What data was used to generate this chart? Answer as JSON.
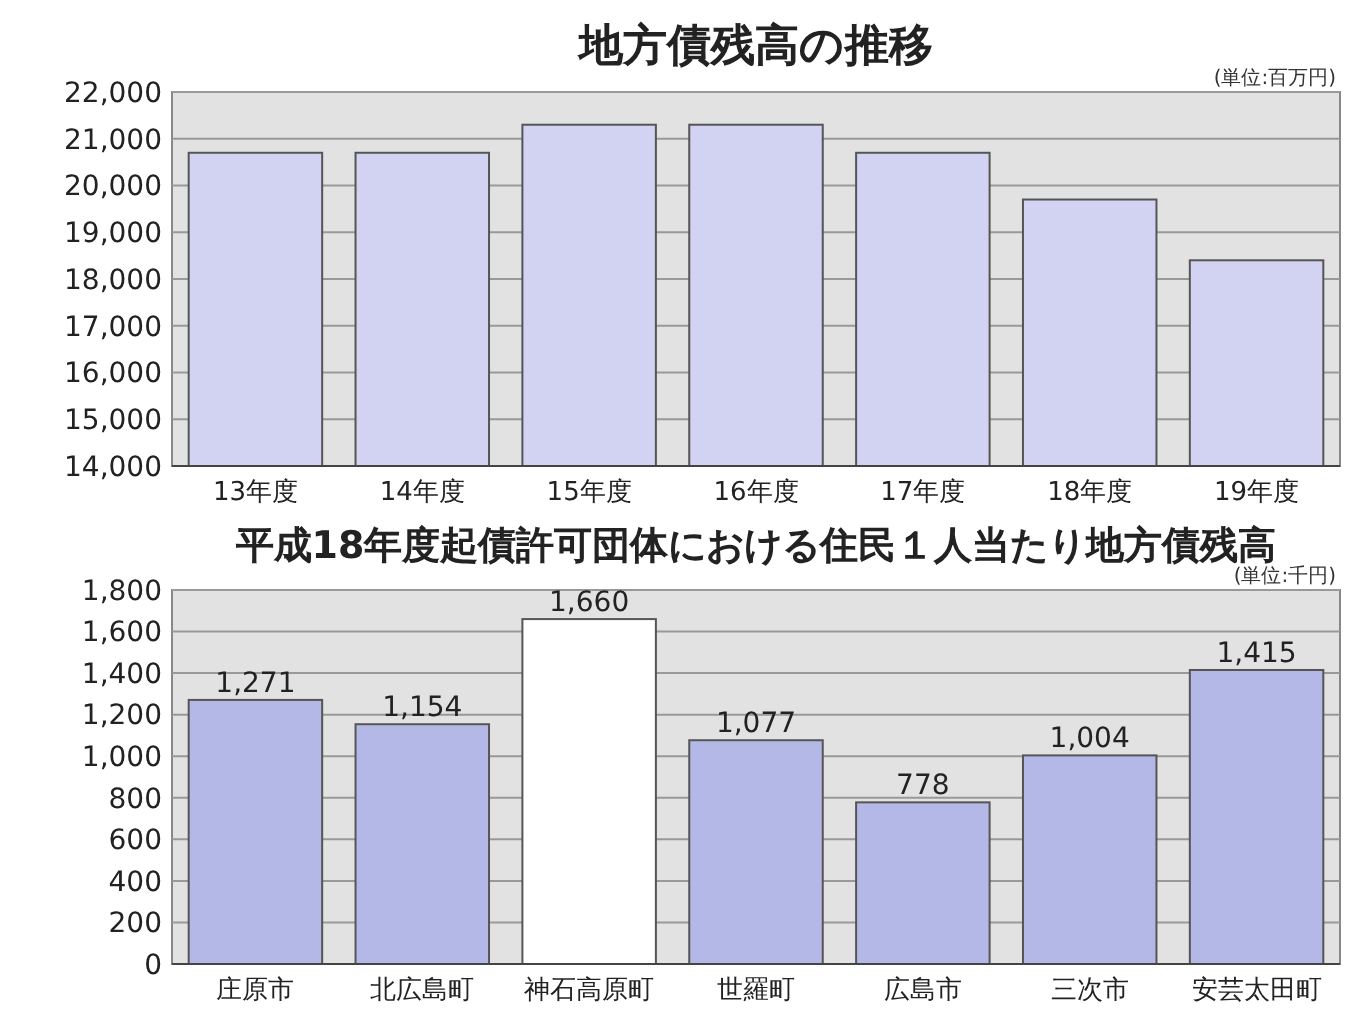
{
  "chart_data": [
    {
      "type": "bar",
      "title": "地方債残高の推移",
      "annotations": [
        "(単位:百万円)"
      ],
      "categories": [
        "13年度",
        "14年度",
        "15年度",
        "16年度",
        "17年度",
        "18年度",
        "19年度"
      ],
      "values": [
        20700,
        20700,
        21300,
        21300,
        20700,
        19700,
        18400
      ],
      "color": "#d2d2f2",
      "ylim": [
        14000,
        22000
      ],
      "yticks": [
        {
          "value": 14000,
          "label": "14,000"
        },
        {
          "value": 15000,
          "label": "15,000"
        },
        {
          "value": 16000,
          "label": "16,000"
        },
        {
          "value": 17000,
          "label": "17,000"
        },
        {
          "value": 18000,
          "label": "18,000"
        },
        {
          "value": 19000,
          "label": "19,000"
        },
        {
          "value": 20000,
          "label": "20,000"
        },
        {
          "value": 21000,
          "label": "21,000"
        },
        {
          "value": 22000,
          "label": "22,000"
        }
      ],
      "grid": "y"
    },
    {
      "type": "bar",
      "title": "平成18年度起債許可団体における住民１人当たり地方債残高",
      "annotations": [
        "(単位:千円)"
      ],
      "categories": [
        "庄原市",
        "北広島町",
        "神石高原町",
        "世羅町",
        "広島市",
        "三次市",
        "安芸太田町"
      ],
      "values": [
        1271,
        1154,
        1660,
        1077,
        778,
        1004,
        1415
      ],
      "colors": [
        "#b4b8e6",
        "#b4b8e6",
        "#ffffff",
        "#b4b8e6",
        "#b4b8e6",
        "#b4b8e6",
        "#b4b8e6"
      ],
      "value_labels": [
        "1,271",
        "1,154",
        "1,660",
        "1,077",
        "778",
        "1,004",
        "1,415"
      ],
      "ylim": [
        0,
        1800
      ],
      "yticks": [
        0,
        {
          "value": 200,
          "label": "200"
        },
        {
          "value": 400,
          "label": "400"
        },
        {
          "value": 600,
          "label": "600"
        },
        {
          "value": 800,
          "label": "800"
        },
        {
          "value": 1000,
          "label": "1,000"
        },
        {
          "value": 1200,
          "label": "1,200"
        },
        {
          "value": 1400,
          "label": "1,400"
        },
        {
          "value": 1600,
          "label": "1,600"
        },
        {
          "value": 1800,
          "label": "1,800"
        }
      ],
      "grid": "y"
    }
  ]
}
